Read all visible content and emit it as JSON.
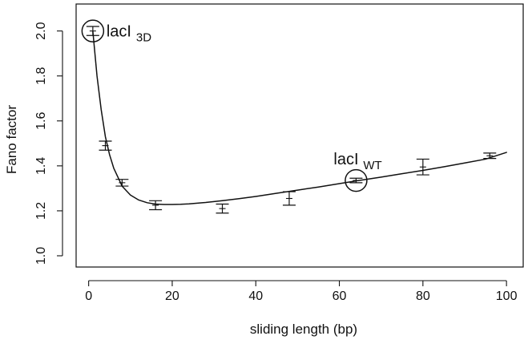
{
  "chart_data": {
    "type": "line",
    "xlabel": "sliding length (bp)",
    "ylabel": "Fano factor",
    "xlim": [
      -3,
      104
    ],
    "ylim": [
      0.95,
      2.12
    ],
    "x_ticks": [
      0,
      20,
      40,
      60,
      80,
      100
    ],
    "y_ticks": [
      1.0,
      1.2,
      1.4,
      1.6,
      1.8,
      2.0
    ],
    "x_tick_labels": [
      "0",
      "20",
      "40",
      "60",
      "80",
      "100"
    ],
    "y_tick_labels": [
      "1.0",
      "1.2",
      "1.4",
      "1.6",
      "1.8",
      "2.0"
    ],
    "grid": false,
    "series": [
      {
        "kind": "errorbar",
        "points": [
          {
            "x": 1,
            "y": 2.0,
            "err_low": 0.02,
            "err_high": 0.02
          },
          {
            "x": 4,
            "y": 1.49,
            "err_low": 0.02,
            "err_high": 0.02
          },
          {
            "x": 8,
            "y": 1.325,
            "err_low": 0.015,
            "err_high": 0.015
          },
          {
            "x": 16,
            "y": 1.225,
            "err_low": 0.02,
            "err_high": 0.02
          },
          {
            "x": 32,
            "y": 1.21,
            "err_low": 0.02,
            "err_high": 0.02
          },
          {
            "x": 48,
            "y": 1.255,
            "err_low": 0.03,
            "err_high": 0.03
          },
          {
            "x": 64,
            "y": 1.335,
            "err_low": 0.01,
            "err_high": 0.01
          },
          {
            "x": 80,
            "y": 1.395,
            "err_low": 0.035,
            "err_high": 0.035
          },
          {
            "x": 96,
            "y": 1.445,
            "err_low": 0.012,
            "err_high": 0.012
          }
        ]
      },
      {
        "kind": "curve",
        "x": [
          1,
          2,
          3,
          4,
          5,
          6,
          8,
          10,
          12,
          14,
          16,
          18,
          20,
          22,
          24,
          28,
          32,
          36,
          40,
          45,
          50,
          55,
          60,
          64,
          70,
          75,
          80,
          85,
          90,
          95,
          100
        ],
        "y": [
          2.0,
          1.8,
          1.65,
          1.53,
          1.45,
          1.39,
          1.31,
          1.27,
          1.248,
          1.236,
          1.23,
          1.228,
          1.228,
          1.229,
          1.231,
          1.237,
          1.245,
          1.254,
          1.264,
          1.278,
          1.292,
          1.306,
          1.321,
          1.333,
          1.35,
          1.365,
          1.38,
          1.396,
          1.413,
          1.43,
          1.46
        ]
      }
    ],
    "annotations": [
      {
        "main": "lacI",
        "sub": "3D",
        "x": 1,
        "y": 2.0
      },
      {
        "main": "lacI",
        "sub": "WT",
        "x": 64,
        "y": 1.335
      }
    ]
  }
}
